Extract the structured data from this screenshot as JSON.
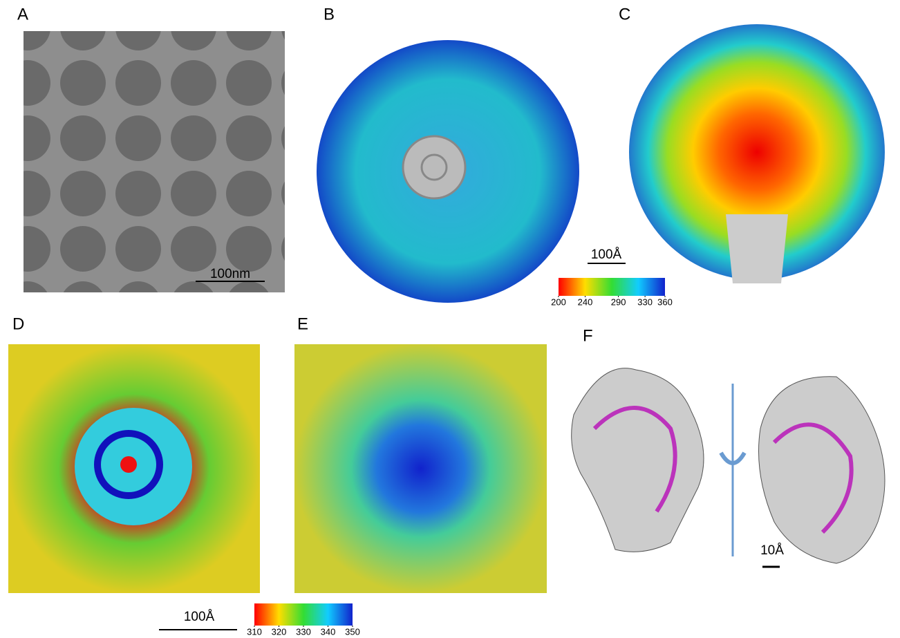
{
  "panels": [
    {
      "label": "A",
      "scale_bar": "100nm"
    },
    {
      "label": "B"
    },
    {
      "label": "C",
      "scale_bar": "100Å"
    },
    {
      "label": "D"
    },
    {
      "label": "E"
    },
    {
      "label": "F",
      "scale_bar": "10Å"
    }
  ],
  "bottom_scale_bar": "100Å",
  "colorbars": [
    {
      "range": [
        200,
        360
      ],
      "ticks": [
        200,
        240,
        290,
        330,
        360
      ]
    },
    {
      "range": [
        310,
        350
      ],
      "ticks": [
        310,
        320,
        330,
        340,
        350
      ]
    }
  ]
}
